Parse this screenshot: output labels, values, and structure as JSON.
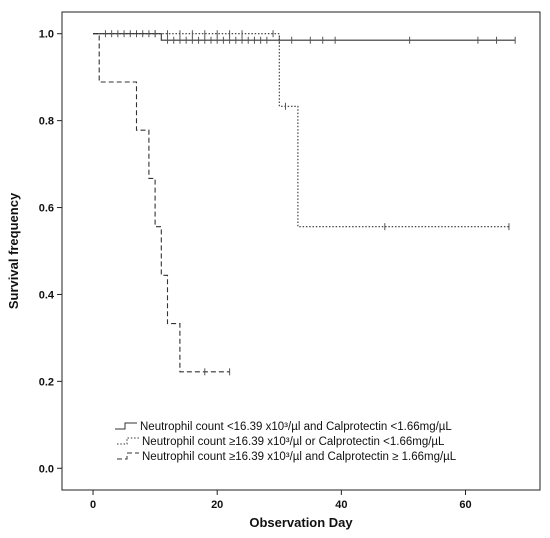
{
  "chart_data": {
    "type": "line",
    "subtype": "kaplan-meier step",
    "xlabel": "Observation Day",
    "ylabel": "Survival frequency",
    "xlim": [
      -5,
      72
    ],
    "ylim": [
      -0.05,
      1.05
    ],
    "xticks": [
      0,
      20,
      40,
      60
    ],
    "yticks": [
      0.0,
      0.2,
      0.4,
      0.6,
      0.8,
      1.0
    ],
    "xtick_labels": [
      "0",
      "20",
      "40",
      "60"
    ],
    "ytick_labels": [
      "0.0",
      "0.2",
      "0.4",
      "0.6",
      "0.8",
      "1.0"
    ],
    "legend_position": "bottom-center",
    "series": [
      {
        "name": "Neutrophil count <16.39 x10³/µl and Calprotectin <1.66mg/µL",
        "line_style": "solid",
        "steps": [
          [
            0,
            1.0
          ],
          [
            11,
            1.0
          ],
          [
            11,
            0.985
          ],
          [
            68,
            0.985
          ]
        ],
        "censored": [
          [
            2,
            1.0
          ],
          [
            3,
            1.0
          ],
          [
            4,
            1.0
          ],
          [
            5,
            1.0
          ],
          [
            6,
            1.0
          ],
          [
            7,
            1.0
          ],
          [
            8,
            1.0
          ],
          [
            9,
            1.0
          ],
          [
            10,
            1.0
          ],
          [
            12,
            0.985
          ],
          [
            13,
            0.985
          ],
          [
            14,
            0.985
          ],
          [
            15,
            0.985
          ],
          [
            16,
            0.985
          ],
          [
            17,
            0.985
          ],
          [
            18,
            0.985
          ],
          [
            19,
            0.985
          ],
          [
            20,
            0.985
          ],
          [
            21,
            0.985
          ],
          [
            22,
            0.985
          ],
          [
            23,
            0.985
          ],
          [
            24,
            0.985
          ],
          [
            25,
            0.985
          ],
          [
            26,
            0.985
          ],
          [
            27,
            0.985
          ],
          [
            28,
            0.985
          ],
          [
            30,
            0.985
          ],
          [
            32,
            0.985
          ],
          [
            35,
            0.985
          ],
          [
            37,
            0.985
          ],
          [
            39,
            0.985
          ],
          [
            51,
            0.985
          ],
          [
            62,
            0.985
          ],
          [
            65,
            0.985
          ],
          [
            68,
            0.985
          ]
        ]
      },
      {
        "name": "Neutrophil count ≥16.39 x10³/µl or Calprotectin <1.66mg/µL",
        "line_style": "dotted",
        "steps": [
          [
            0,
            1.0
          ],
          [
            30,
            1.0
          ],
          [
            30,
            0.833
          ],
          [
            33,
            0.833
          ],
          [
            33,
            0.556
          ],
          [
            67,
            0.556
          ]
        ],
        "censored": [
          [
            10,
            1.0
          ],
          [
            12,
            1.0
          ],
          [
            14,
            1.0
          ],
          [
            16,
            1.0
          ],
          [
            18,
            1.0
          ],
          [
            20,
            1.0
          ],
          [
            22,
            1.0
          ],
          [
            24,
            1.0
          ],
          [
            29,
            1.0
          ],
          [
            31,
            0.833
          ],
          [
            47,
            0.556
          ],
          [
            67,
            0.556
          ]
        ]
      },
      {
        "name": "Neutrophil count ≥16.39 x10³/µl and Calprotectin ≥ 1.66mg/µL",
        "line_style": "dashed",
        "steps": [
          [
            0,
            1.0
          ],
          [
            1,
            1.0
          ],
          [
            1,
            0.889
          ],
          [
            7,
            0.889
          ],
          [
            7,
            0.778
          ],
          [
            9,
            0.778
          ],
          [
            9,
            0.667
          ],
          [
            10,
            0.667
          ],
          [
            10,
            0.556
          ],
          [
            11,
            0.556
          ],
          [
            11,
            0.444
          ],
          [
            12,
            0.444
          ],
          [
            12,
            0.333
          ],
          [
            14,
            0.333
          ],
          [
            14,
            0.222
          ],
          [
            22,
            0.222
          ]
        ],
        "censored": [
          [
            18,
            0.222
          ],
          [
            22,
            0.222
          ]
        ]
      }
    ]
  }
}
